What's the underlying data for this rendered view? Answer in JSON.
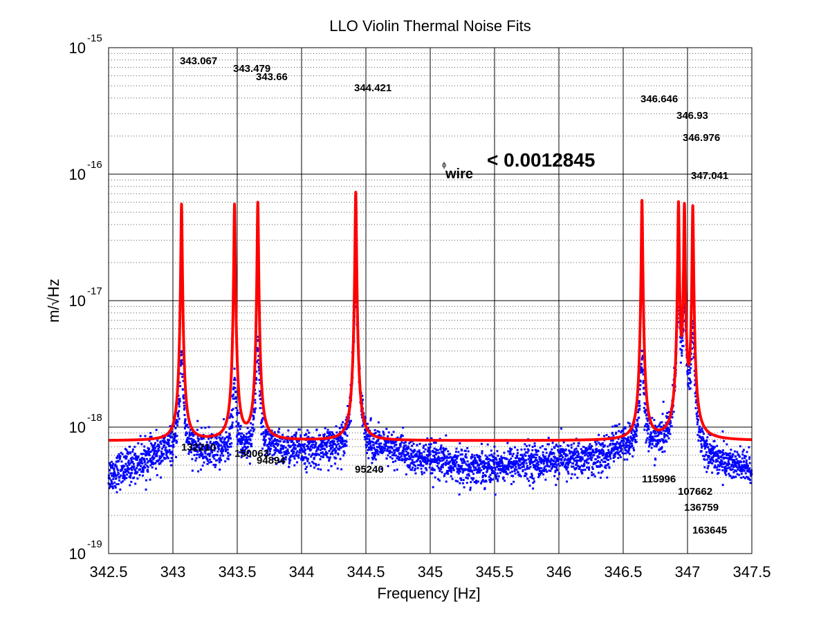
{
  "chart_data": {
    "type": "scatter",
    "title": "LLO Violin Thermal Noise Fits",
    "xlabel": "Frequency [Hz]",
    "ylabel": "m/√Hz",
    "xlim": [
      342.5,
      347.5
    ],
    "ylim": [
      1e-19,
      1e-15
    ],
    "yscale": "log",
    "grid": true,
    "x_ticks": [
      "342.5",
      "343",
      "343.5",
      "344",
      "344.5",
      "345",
      "345.5",
      "346",
      "346.5",
      "347",
      "347.5"
    ],
    "y_ticks": [
      {
        "base": "10",
        "exp": "-15"
      },
      {
        "base": "10",
        "exp": "-16"
      },
      {
        "base": "10",
        "exp": "-17"
      },
      {
        "base": "10",
        "exp": "-18"
      },
      {
        "base": "10",
        "exp": "-19"
      }
    ],
    "fit_result": {
      "symbol": "ϕ",
      "subscript": "wire",
      "text": "< 0.0012845"
    },
    "series": [
      {
        "type": "scatter",
        "color": "#0000ff"
      },
      {
        "type": "line",
        "color": "#ff0000",
        "floor": 7.8e-19,
        "peak_height": 5.8e-17,
        "width_hz": 0.0045
      }
    ],
    "modes": [
      {
        "freq_label": "343.067",
        "freq": 343.067,
        "q_label": "132210",
        "peak": 5.8e-17,
        "raw_peak": 3e-18
      },
      {
        "freq_label": "343.479",
        "freq": 343.479,
        "q_label": "150063",
        "peak": 5.8e-17,
        "raw_peak": 1.6e-18
      },
      {
        "freq_label": "343.66",
        "freq": 343.66,
        "q_label": "94894",
        "peak": 6e-17,
        "raw_peak": 3.8e-18
      },
      {
        "freq_label": "344.421",
        "freq": 344.421,
        "q_label": "95240",
        "peak": 7.2e-17,
        "raw_peak": 1.2e-17
      },
      {
        "freq_label": "346.646",
        "freq": 346.646,
        "q_label": "115996",
        "peak": 6.2e-17,
        "raw_peak": 3e-18
      },
      {
        "freq_label": "346.93",
        "freq": 346.93,
        "q_label": "107662",
        "peak": 6e-17,
        "raw_peak": 9e-18
      },
      {
        "freq_label": "346.976",
        "freq": 346.976,
        "q_label": "136759",
        "peak": 5.8e-17,
        "raw_peak": 8e-18
      },
      {
        "freq_label": "347.041",
        "freq": 347.041,
        "q_label": "163645",
        "peak": 5.6e-17,
        "raw_peak": 5e-18
      }
    ]
  }
}
